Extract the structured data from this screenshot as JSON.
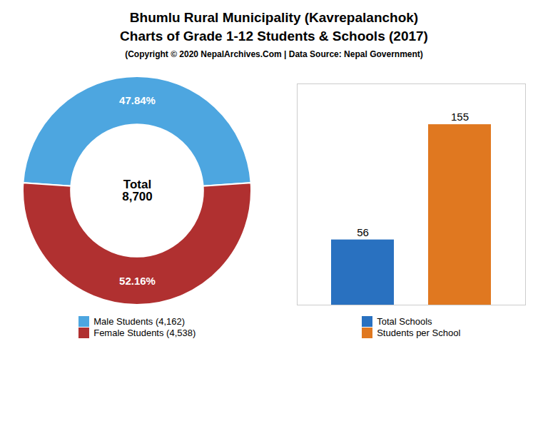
{
  "chart_data": [
    {
      "type": "pie",
      "title": "Bhumlu Rural Municipality (Kavrepalanchok)\nCharts of Grade 1-12 Students & Schools (2017)",
      "subtitle": "(Copyright © 2020 NepalArchives.Com | Data Source: Nepal Government)",
      "categories": [
        "Male Students (4,162)",
        "Female Students (4,538)"
      ],
      "values": [
        47.84,
        52.16
      ],
      "value_labels": [
        "47.84%",
        "52.16%"
      ],
      "colors": [
        "#4da6e0",
        "#b03030"
      ],
      "data_labels": true,
      "annotations": [
        "Total\n8,700"
      ],
      "legend": "bottom"
    },
    {
      "type": "bar",
      "categories": [
        "Total Schools",
        "Students per School"
      ],
      "values": [
        56,
        155
      ],
      "colors": [
        "#2971c0",
        "#e07820"
      ],
      "ylim": [
        0,
        190
      ],
      "data_labels": true,
      "tick_labels": false,
      "legend": "bottom"
    }
  ]
}
